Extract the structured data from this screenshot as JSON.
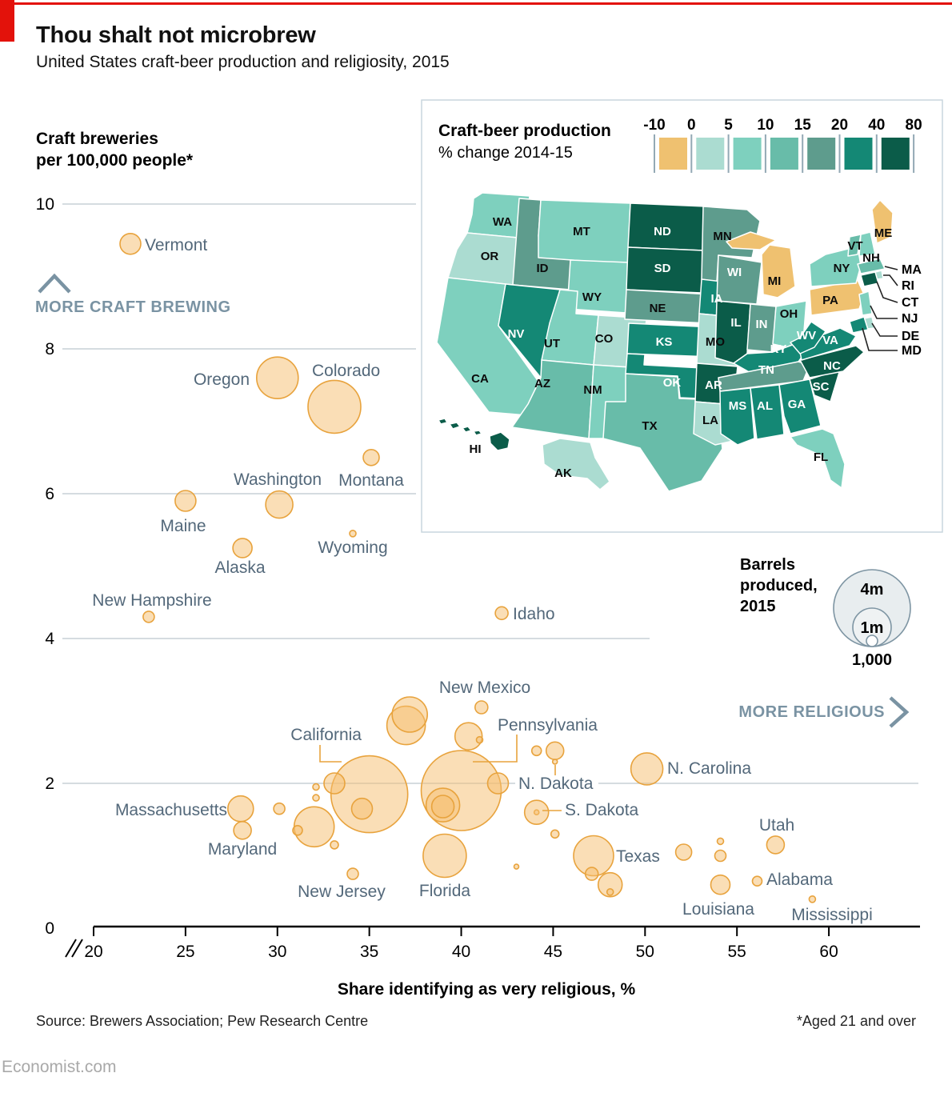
{
  "header": {
    "title": "Thou shalt not microbrew",
    "subtitle": "United States craft-beer production and religiosity, 2015"
  },
  "footer": {
    "source": "Source: Brewers Association; Pew Research Centre",
    "note": "*Aged 21 and over",
    "brand": "Economist.com"
  },
  "colors": {
    "accent_red": "#E3120B",
    "bubble_fill": "#F5BE6E",
    "bubble_stroke": "#E8A33D",
    "annotation": "#7A93A3",
    "state_label": "#53687A",
    "grid": "#C7D0D6",
    "map_box_border": "#C9D6DD",
    "size_legend_fill": "#E8EDEF",
    "size_legend_stroke": "#7E95A3"
  },
  "scatter": {
    "y_axis_label_lines": [
      "Craft breweries",
      "per 100,000 people*"
    ],
    "x_axis_label": "Share identifying as very religious, %",
    "y_ticks": [
      "10",
      "8",
      "6",
      "4",
      "2",
      "0"
    ],
    "x_ticks": [
      "20",
      "25",
      "30",
      "35",
      "40",
      "45",
      "50",
      "55",
      "60"
    ],
    "annotation_up": "MORE CRAFT BREWING",
    "annotation_right": "MORE RELIGIOUS"
  },
  "size_legend": {
    "title_lines": [
      "Barrels",
      "produced,",
      "2015"
    ],
    "circles": [
      {
        "label": "4m",
        "r": 48
      },
      {
        "label": "1m",
        "r": 24
      },
      {
        "label": "1,000",
        "r": 7
      }
    ]
  },
  "map": {
    "title": "Craft-beer production",
    "subtitle": "% change 2014-15",
    "legend_labels": [
      "-10",
      "0",
      "5",
      "10",
      "15",
      "20",
      "40",
      "80"
    ],
    "band_colors": [
      "#EFC170",
      "#ABDCD1",
      "#7ED0BE",
      "#68BCA9",
      "#5E9C8D",
      "#148875",
      "#0B5C49"
    ],
    "callout_labels": [
      "MA",
      "RI",
      "CT",
      "NJ",
      "DE",
      "MD"
    ]
  },
  "chart_data": {
    "type": "scatter",
    "title": "United States craft-beer production and religiosity, 2015",
    "xlabel": "Share identifying as very religious, %",
    "ylabel": "Craft breweries per 100,000 people (aged 21 and over)",
    "xlim": [
      20,
      63
    ],
    "ylim": [
      0,
      10
    ],
    "size_encoding": "bubble radius px = barrels produced, 2015 (legend: 4m, 1m, 1,000)",
    "points": [
      {
        "state": "Vermont",
        "x": 22.0,
        "y": 9.45,
        "r": 13
      },
      {
        "state": "Oregon",
        "x": 30.0,
        "y": 7.6,
        "r": 26
      },
      {
        "state": "Colorado",
        "x": 33.1,
        "y": 7.2,
        "r": 33
      },
      {
        "state": "Montana",
        "x": 35.1,
        "y": 6.5,
        "r": 10
      },
      {
        "state": "Maine",
        "x": 25.0,
        "y": 5.9,
        "r": 13
      },
      {
        "state": "Washington",
        "x": 30.1,
        "y": 5.85,
        "r": 17
      },
      {
        "state": "Alaska",
        "x": 28.1,
        "y": 5.25,
        "r": 12
      },
      {
        "state": "Wyoming",
        "x": 34.1,
        "y": 5.45,
        "r": 4
      },
      {
        "state": "New Hampshire",
        "x": 23.0,
        "y": 4.3,
        "r": 7
      },
      {
        "state": "Idaho",
        "x": 42.2,
        "y": 4.35,
        "r": 8
      },
      {
        "state": "New Mexico",
        "x": 41.1,
        "y": 3.05,
        "r": 8
      },
      {
        "state": "California",
        "x": 35.0,
        "y": 1.85,
        "r": 48
      },
      {
        "state": "Pennsylvania",
        "x": 40.0,
        "y": 1.9,
        "r": 50
      },
      {
        "state": "Massachusetts",
        "x": 28.0,
        "y": 1.65,
        "r": 16
      },
      {
        "state": "Maryland",
        "x": 28.1,
        "y": 1.35,
        "r": 11
      },
      {
        "state": "New Jersey",
        "x": 34.1,
        "y": 0.75,
        "r": 7
      },
      {
        "state": "Florida",
        "x": 39.1,
        "y": 1.0,
        "r": 27
      },
      {
        "state": "N. Dakota",
        "x": 45.1,
        "y": 2.3,
        "r": 3
      },
      {
        "state": "S. Dakota",
        "x": 44.1,
        "y": 1.6,
        "r": 3
      },
      {
        "state": "Texas",
        "x": 47.2,
        "y": 1.0,
        "r": 25
      },
      {
        "state": "N. Carolina",
        "x": 50.1,
        "y": 2.2,
        "r": 20
      },
      {
        "state": "Utah",
        "x": 57.1,
        "y": 1.15,
        "r": 11
      },
      {
        "state": "Alabama",
        "x": 56.1,
        "y": 0.65,
        "r": 6
      },
      {
        "state": "Louisiana",
        "x": 54.1,
        "y": 0.6,
        "r": 12
      },
      {
        "state": "Mississippi",
        "x": 59.1,
        "y": 0.4,
        "r": 4
      },
      {
        "state": "",
        "x": 30.1,
        "y": 1.65,
        "r": 7
      },
      {
        "state": "",
        "x": 32.1,
        "y": 1.95,
        "r": 4
      },
      {
        "state": "",
        "x": 32.1,
        "y": 1.8,
        "r": 4
      },
      {
        "state": "",
        "x": 33.1,
        "y": 2.0,
        "r": 13
      },
      {
        "state": "",
        "x": 32.0,
        "y": 1.4,
        "r": 25
      },
      {
        "state": "",
        "x": 31.1,
        "y": 1.35,
        "r": 6
      },
      {
        "state": "",
        "x": 33.1,
        "y": 1.15,
        "r": 5
      },
      {
        "state": "",
        "x": 37.0,
        "y": 2.8,
        "r": 24
      },
      {
        "state": "",
        "x": 37.2,
        "y": 2.95,
        "r": 22
      },
      {
        "state": "",
        "x": 39.0,
        "y": 1.7,
        "r": 21
      },
      {
        "state": "",
        "x": 39.0,
        "y": 1.68,
        "r": 14
      },
      {
        "state": "",
        "x": 34.6,
        "y": 1.65,
        "r": 13
      },
      {
        "state": "",
        "x": 40.4,
        "y": 2.65,
        "r": 17
      },
      {
        "state": "",
        "x": 41.0,
        "y": 2.6,
        "r": 4
      },
      {
        "state": "",
        "x": 44.1,
        "y": 2.45,
        "r": 6
      },
      {
        "state": "",
        "x": 45.1,
        "y": 2.45,
        "r": 11
      },
      {
        "state": "",
        "x": 42.0,
        "y": 2.0,
        "r": 13
      },
      {
        "state": "",
        "x": 44.1,
        "y": 1.6,
        "r": 15
      },
      {
        "state": "",
        "x": 43.0,
        "y": 0.85,
        "r": 3
      },
      {
        "state": "",
        "x": 47.1,
        "y": 0.75,
        "r": 8
      },
      {
        "state": "",
        "x": 48.1,
        "y": 0.6,
        "r": 15
      },
      {
        "state": "",
        "x": 48.1,
        "y": 0.5,
        "r": 4
      },
      {
        "state": "",
        "x": 52.1,
        "y": 1.05,
        "r": 10
      },
      {
        "state": "",
        "x": 54.1,
        "y": 1.2,
        "r": 4
      },
      {
        "state": "",
        "x": 54.1,
        "y": 1.0,
        "r": 7
      },
      {
        "state": "",
        "x": 45.1,
        "y": 1.3,
        "r": 5
      }
    ],
    "choropleth": {
      "title": "Craft-beer production, % change 2014-15",
      "bands": [
        "-10–0",
        "0–5",
        "5–10",
        "10–15",
        "15–20",
        "20–40",
        "40–80"
      ],
      "state_bands": {
        "WA": 2,
        "OR": 1,
        "CA": 2,
        "ID": 4,
        "NV": 5,
        "UT": 2,
        "AZ": 3,
        "MT": 2,
        "WY": 2,
        "CO": 1,
        "NM": 2,
        "ND": 6,
        "SD": 6,
        "NE": 4,
        "KS": 5,
        "OK": 5,
        "TX": 3,
        "MN": 4,
        "IA": 5,
        "MO": 1,
        "AR": 6,
        "LA": 1,
        "WI": 4,
        "IL": 6,
        "IN": 4,
        "MI": 0,
        "OH": 2,
        "KY": 5,
        "TN": 4,
        "MS": 5,
        "AL": 5,
        "GA": 5,
        "SC": 6,
        "NC": 6,
        "FL": 2,
        "VA": 5,
        "WV": 5,
        "PA": 0,
        "NY": 2,
        "NJ": 2,
        "DE": 1,
        "MD": 5,
        "MA": 3,
        "RI": 1,
        "CT": 6,
        "VT": 3,
        "NH": 2,
        "ME": 0,
        "AK": 1,
        "HI": 6
      }
    }
  }
}
